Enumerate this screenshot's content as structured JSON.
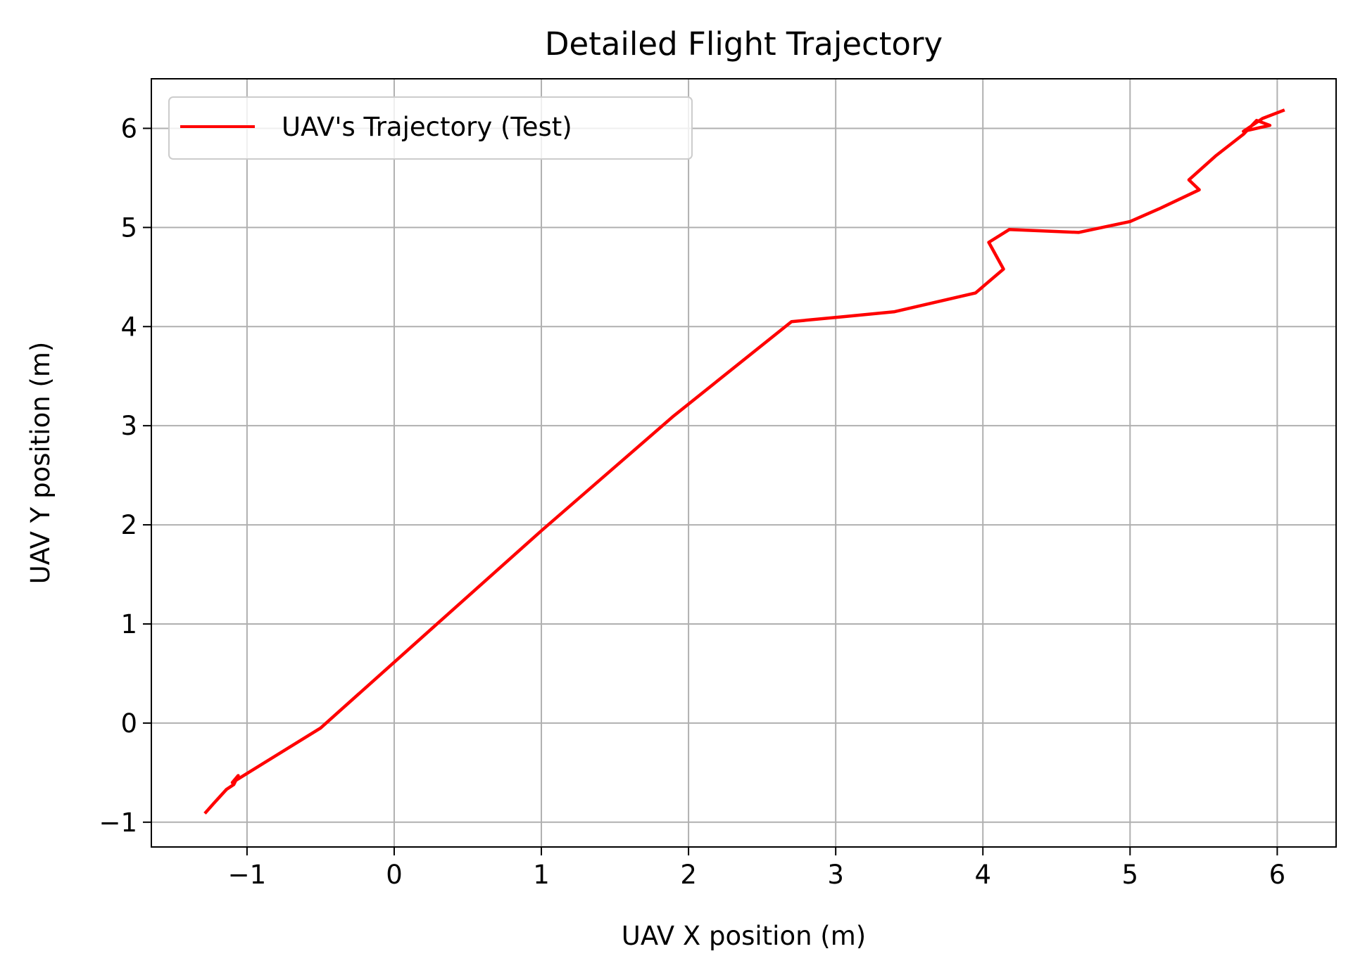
{
  "chart_data": {
    "type": "line",
    "title": "Detailed Flight Trajectory",
    "xlabel": "UAV X position (m)",
    "ylabel": "UAV Y position (m)",
    "xlim": [
      -1.65,
      6.4
    ],
    "ylim": [
      -1.25,
      6.5
    ],
    "xticks": [
      -1,
      0,
      1,
      2,
      3,
      4,
      5,
      6
    ],
    "yticks": [
      -1,
      0,
      1,
      2,
      3,
      4,
      5,
      6
    ],
    "xtick_labels": [
      "−1",
      "0",
      "1",
      "2",
      "3",
      "4",
      "5",
      "6"
    ],
    "ytick_labels": [
      "−1",
      "0",
      "1",
      "2",
      "3",
      "4",
      "5",
      "6"
    ],
    "grid": true,
    "legend_position": "top-left",
    "series": [
      {
        "name": "UAV's Trajectory (Test)",
        "color": "#ff0000",
        "x": [
          -1.28,
          -1.22,
          -1.14,
          -1.09,
          -1.06,
          -1.1,
          -0.5,
          0.2,
          1.0,
          1.9,
          2.7,
          3.05,
          3.4,
          3.95,
          4.14,
          4.04,
          4.18,
          4.65,
          5.0,
          5.2,
          5.47,
          5.4,
          5.58,
          5.77,
          5.86,
          5.95,
          5.77,
          5.9,
          6.04
        ],
        "y": [
          -0.9,
          -0.8,
          -0.67,
          -0.62,
          -0.53,
          -0.6,
          -0.05,
          0.88,
          1.94,
          3.1,
          4.05,
          4.1,
          4.15,
          4.34,
          4.58,
          4.85,
          4.98,
          4.95,
          5.06,
          5.19,
          5.38,
          5.48,
          5.72,
          5.94,
          6.08,
          6.03,
          5.97,
          6.1,
          6.18
        ]
      }
    ]
  }
}
